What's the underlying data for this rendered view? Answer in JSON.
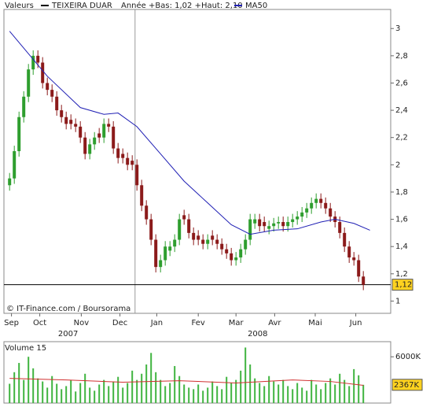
{
  "chart_data": [
    {
      "type": "candlestick",
      "legend_label": "Valeurs",
      "note": "Année +Bas: 1,02 +Haut: 2,10",
      "source": "© IT-Finance.com / Boursorama",
      "xlim": [
        -5,
        405
      ],
      "ylim": [
        0.91,
        3.14
      ],
      "xticks": [
        {
          "value": 3,
          "label": "Sep"
        },
        {
          "value": 33,
          "label": "Oct"
        },
        {
          "value": 77,
          "label": "Nov"
        },
        {
          "value": 118,
          "label": "Dec"
        },
        {
          "value": 157,
          "label": "Jan"
        },
        {
          "value": 201,
          "label": "Fev"
        },
        {
          "value": 241,
          "label": "Mar"
        },
        {
          "value": 282,
          "label": "Avr"
        },
        {
          "value": 325,
          "label": "Mai"
        },
        {
          "value": 368,
          "label": "Jun"
        }
      ],
      "year_labels": [
        {
          "value": 63,
          "label": "2007"
        },
        {
          "value": 264,
          "label": "2008"
        }
      ],
      "vlines": [
        134
      ],
      "yticks": [
        1,
        {
          "value": 1.2,
          "label": "1,2"
        },
        {
          "value": 1.4,
          "label": "1,4"
        },
        {
          "value": 1.6,
          "label": "1,6"
        },
        {
          "value": 1.8,
          "label": "1,8"
        },
        2,
        {
          "value": 2.2,
          "label": "2,2"
        },
        {
          "value": 2.4,
          "label": "2,4"
        },
        {
          "value": 2.6,
          "label": "2,6"
        },
        {
          "value": 2.8,
          "label": "2,8"
        },
        3
      ],
      "last_price": {
        "value": 1.12,
        "label": "1,12"
      },
      "series": [
        {
          "name": "TEIXEIRA DUAR",
          "color": "#000000",
          "up_color": "#2e9e2e",
          "down_color": "#8b1a1a",
          "x": [
            1,
            6,
            11,
            16,
            21,
            26,
            31,
            36,
            41,
            46,
            51,
            56,
            61,
            66,
            71,
            76,
            81,
            86,
            91,
            96,
            101,
            106,
            111,
            116,
            121,
            126,
            131,
            136,
            141,
            146,
            151,
            156,
            161,
            166,
            171,
            176,
            181,
            186,
            191,
            196,
            201,
            206,
            211,
            216,
            221,
            226,
            231,
            236,
            241,
            246,
            251,
            256,
            261,
            266,
            271,
            276,
            281,
            286,
            291,
            296,
            301,
            306,
            311,
            316,
            321,
            326,
            331,
            336,
            341,
            346,
            351,
            356,
            361,
            366,
            371,
            376
          ],
          "open": [
            1.85,
            1.9,
            2.1,
            2.35,
            2.5,
            2.7,
            2.8,
            2.75,
            2.6,
            2.55,
            2.5,
            2.4,
            2.35,
            2.33,
            2.3,
            2.28,
            2.2,
            2.08,
            2.15,
            2.23,
            2.2,
            2.3,
            2.28,
            2.12,
            2.08,
            2.05,
            2.03,
            2.0,
            1.85,
            1.7,
            1.6,
            1.45,
            1.25,
            1.3,
            1.37,
            1.4,
            1.45,
            1.63,
            1.6,
            1.5,
            1.48,
            1.45,
            1.42,
            1.48,
            1.45,
            1.42,
            1.38,
            1.35,
            1.3,
            1.32,
            1.38,
            1.45,
            1.57,
            1.6,
            1.58,
            1.53,
            1.55,
            1.57,
            1.58,
            1.55,
            1.58,
            1.6,
            1.62,
            1.65,
            1.68,
            1.72,
            1.75,
            1.72,
            1.68,
            1.62,
            1.58,
            1.5,
            1.4,
            1.32,
            1.3,
            1.18
          ],
          "high": [
            1.94,
            2.14,
            2.39,
            2.54,
            2.74,
            2.84,
            2.84,
            2.79,
            2.64,
            2.59,
            2.54,
            2.44,
            2.39,
            2.37,
            2.34,
            2.32,
            2.24,
            2.19,
            2.24,
            2.27,
            2.34,
            2.34,
            2.32,
            2.16,
            2.12,
            2.09,
            2.07,
            2.04,
            1.89,
            1.74,
            1.64,
            1.49,
            1.34,
            1.44,
            1.44,
            1.49,
            1.64,
            1.67,
            1.64,
            1.54,
            1.52,
            1.49,
            1.49,
            1.52,
            1.49,
            1.46,
            1.42,
            1.39,
            1.36,
            1.42,
            1.49,
            1.64,
            1.64,
            1.64,
            1.62,
            1.59,
            1.61,
            1.62,
            1.62,
            1.62,
            1.64,
            1.66,
            1.69,
            1.72,
            1.76,
            1.79,
            1.79,
            1.76,
            1.72,
            1.66,
            1.62,
            1.54,
            1.44,
            1.36,
            1.34,
            1.22
          ],
          "low": [
            1.81,
            1.86,
            2.06,
            2.31,
            2.46,
            2.66,
            2.71,
            2.56,
            2.51,
            2.46,
            2.36,
            2.31,
            2.26,
            2.26,
            2.24,
            2.16,
            2.04,
            2.04,
            2.11,
            2.16,
            2.16,
            2.24,
            2.08,
            2.01,
            2.01,
            1.96,
            1.96,
            1.81,
            1.66,
            1.56,
            1.41,
            1.21,
            1.21,
            1.26,
            1.33,
            1.36,
            1.41,
            1.56,
            1.46,
            1.41,
            1.41,
            1.38,
            1.38,
            1.41,
            1.38,
            1.34,
            1.31,
            1.26,
            1.26,
            1.28,
            1.34,
            1.41,
            1.53,
            1.51,
            1.51,
            1.49,
            1.51,
            1.53,
            1.51,
            1.51,
            1.54,
            1.56,
            1.58,
            1.61,
            1.64,
            1.68,
            1.68,
            1.64,
            1.58,
            1.54,
            1.46,
            1.36,
            1.28,
            1.26,
            1.14,
            1.08
          ],
          "close": [
            1.9,
            2.1,
            2.35,
            2.5,
            2.7,
            2.8,
            2.75,
            2.6,
            2.55,
            2.5,
            2.4,
            2.35,
            2.3,
            2.3,
            2.28,
            2.2,
            2.08,
            2.15,
            2.2,
            2.2,
            2.3,
            2.28,
            2.12,
            2.05,
            2.05,
            2.0,
            2.0,
            1.85,
            1.7,
            1.6,
            1.45,
            1.25,
            1.3,
            1.4,
            1.4,
            1.45,
            1.6,
            1.6,
            1.5,
            1.45,
            1.45,
            1.42,
            1.45,
            1.45,
            1.42,
            1.38,
            1.35,
            1.3,
            1.32,
            1.38,
            1.45,
            1.6,
            1.6,
            1.55,
            1.55,
            1.55,
            1.57,
            1.58,
            1.55,
            1.58,
            1.6,
            1.62,
            1.65,
            1.68,
            1.72,
            1.75,
            1.72,
            1.68,
            1.62,
            1.58,
            1.5,
            1.4,
            1.32,
            1.3,
            1.18,
            1.12
          ]
        },
        {
          "name": "MA50",
          "type": "line",
          "color": "#1f1fb4",
          "x": [
            1,
            41,
            76,
            101,
            116,
            136,
            161,
            186,
            211,
            236,
            256,
            281,
            306,
            331,
            346,
            366,
            383
          ],
          "values": [
            2.98,
            2.65,
            2.42,
            2.37,
            2.38,
            2.28,
            2.08,
            1.88,
            1.72,
            1.56,
            1.49,
            1.52,
            1.53,
            1.58,
            1.6,
            1.57,
            1.52
          ]
        }
      ]
    },
    {
      "type": "bar",
      "title": "Volume 15",
      "xlim": [
        -5,
        405
      ],
      "ylim": [
        0,
        7960
      ],
      "yticks": [
        {
          "value": 6000,
          "label": "6000K"
        }
      ],
      "last_value": {
        "value": 2367,
        "label": "2367K"
      },
      "series": [
        {
          "color": "#3fb43f",
          "x": [
            1,
            6,
            11,
            16,
            21,
            26,
            31,
            36,
            41,
            46,
            51,
            56,
            61,
            66,
            71,
            76,
            81,
            86,
            91,
            96,
            101,
            106,
            111,
            116,
            121,
            126,
            131,
            136,
            141,
            146,
            151,
            156,
            161,
            166,
            171,
            176,
            181,
            186,
            191,
            196,
            201,
            206,
            211,
            216,
            221,
            226,
            231,
            236,
            241,
            246,
            251,
            256,
            261,
            266,
            271,
            276,
            281,
            286,
            291,
            296,
            301,
            306,
            311,
            316,
            321,
            326,
            331,
            336,
            341,
            346,
            351,
            356,
            361,
            366,
            371,
            376
          ],
          "values": [
            2500,
            4000,
            5200,
            3000,
            6000,
            4500,
            3200,
            2800,
            2000,
            3500,
            2500,
            1800,
            2200,
            3000,
            1500,
            2600,
            3800,
            2000,
            1600,
            2400,
            3000,
            2200,
            2800,
            3400,
            2000,
            2600,
            4200,
            3000,
            3800,
            5000,
            6500,
            4000,
            3000,
            2200,
            2600,
            4800,
            3500,
            2400,
            2000,
            1800,
            2400,
            1600,
            2000,
            2800,
            2200,
            1800,
            3400,
            2600,
            3000,
            4200,
            7200,
            5000,
            3200,
            2600,
            2200,
            3500,
            2800,
            2400,
            3000,
            2200,
            1800,
            2600,
            2000,
            1600,
            3000,
            2400,
            1800,
            2600,
            3200,
            2400,
            3800,
            3000,
            2200,
            4400,
            3600,
            2367
          ]
        },
        {
          "type": "line",
          "color": "#d03030",
          "x": [
            1,
            61,
            121,
            181,
            241,
            301,
            341,
            376
          ],
          "values": [
            3200,
            3000,
            2700,
            2900,
            2600,
            3000,
            2800,
            2300
          ]
        }
      ]
    }
  ]
}
